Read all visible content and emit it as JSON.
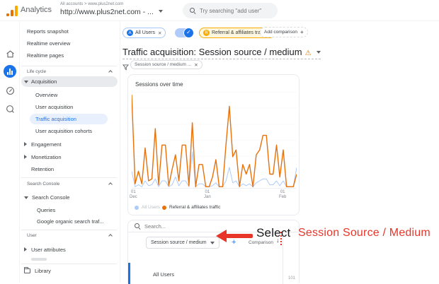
{
  "header": {
    "logo_text": "Analytics",
    "breadcrumb": "All accounts > www.plus2net.com",
    "property": "http://www.plus2net.com - ...",
    "search_placeholder": "Try searching \"add user\""
  },
  "rail": {
    "items": [
      "home",
      "reports",
      "explore",
      "advertising"
    ],
    "active": "reports"
  },
  "sidebar": {
    "top_items": [
      "Reports snapshot",
      "Realtime overview",
      "Realtime pages"
    ],
    "life_cycle_header": "Life cycle",
    "acquisition": "Acquisition",
    "acq_children": [
      "Overview",
      "User acquisition",
      "Traffic acquisition",
      "User acquisition cohorts"
    ],
    "active_item": "Traffic acquisition",
    "engagement": "Engagement",
    "monetization": "Monetization",
    "retention": "Retention",
    "search_console_header": "Search Console",
    "search_console_item": "Search Console",
    "sc_children": [
      "Queries",
      "Google organic search traf..."
    ],
    "user_header": "User",
    "user_attributes": "User attributes",
    "library": "Library"
  },
  "comparisons": {
    "all_users_chip": {
      "initial": "A",
      "label": "All Users"
    },
    "referral_chip": {
      "initial": "R",
      "label": "Referral & affiliates tra..."
    },
    "add_comparison_label": "Add comparison"
  },
  "report": {
    "title": "Traffic acquisition: Session source / medium",
    "filter_chip": "Session source / medium ..."
  },
  "chart_data": {
    "type": "line",
    "title": "Sessions over time",
    "x_ticks": [
      {
        "l1": "01",
        "l2": "Dec"
      },
      {
        "l1": "01",
        "l2": "Jan"
      },
      {
        "l1": "01",
        "l2": "Feb"
      }
    ],
    "xlabel": "",
    "ylabel": "",
    "ylim": [
      0,
      100
    ],
    "value_scale": "relative (no y-axis tick labels visible)",
    "grid": true,
    "legend_position": "bottom",
    "series": [
      {
        "name": "All Users",
        "color": "#aecbfa",
        "active": false,
        "values": [
          18,
          2,
          4,
          2,
          8,
          3,
          4,
          10,
          2,
          8,
          8,
          2,
          4,
          12,
          3,
          8,
          8,
          2,
          38,
          2,
          5,
          5,
          2,
          2,
          3,
          6,
          2,
          2,
          8,
          22,
          6,
          8,
          2,
          5,
          3,
          5,
          2,
          6,
          8,
          10,
          10,
          4,
          4,
          8,
          3,
          8,
          2,
          2,
          2,
          22
        ]
      },
      {
        "name": "Referral & affiliates traffic",
        "color": "#e8710a",
        "active": true,
        "values": [
          97,
          5,
          18,
          5,
          42,
          8,
          10,
          62,
          4,
          45,
          45,
          3,
          20,
          35,
          8,
          45,
          45,
          3,
          68,
          2,
          25,
          25,
          2,
          2,
          12,
          30,
          2,
          2,
          45,
          85,
          33,
          40,
          2,
          25,
          15,
          25,
          2,
          35,
          40,
          55,
          55,
          15,
          15,
          45,
          12,
          40,
          2,
          2,
          2,
          15
        ]
      }
    ]
  },
  "table": {
    "search_placeholder": "Search...",
    "dimension_dropdown": "Session source / medium",
    "comparison_label": "Comparison",
    "row_label": "All Users",
    "row_value": "101"
  },
  "annotation": {
    "select_text": "Select",
    "highlight_text": "Session Source / Medium",
    "color": "#e8352a"
  },
  "icons": {
    "close": "✕",
    "plus": "+",
    "sort_desc": "↓",
    "warning": "⚠",
    "check": "✓"
  },
  "colors": {
    "accent_blue": "#1a73e8",
    "series_orange": "#e8710a",
    "series_faded_blue": "#aecbfa",
    "warning_orange": "#e37400",
    "annotation_red": "#e8352a",
    "active_bg": "#e8f0fe",
    "chip_cream": "#fef7e0"
  }
}
